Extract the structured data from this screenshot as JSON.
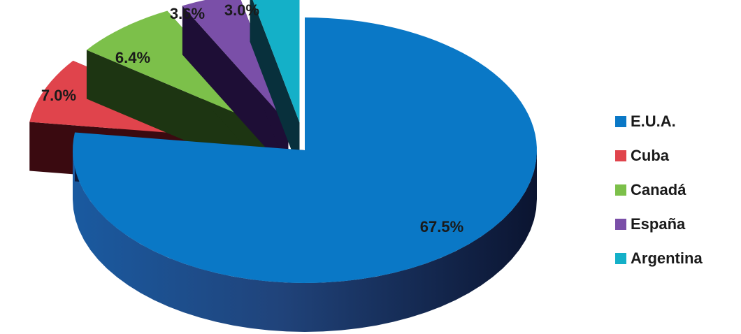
{
  "chart_data": {
    "type": "pie",
    "title": "",
    "categories": [
      "E.U.A.",
      "Cuba",
      "Canadá",
      "España",
      "Argentina"
    ],
    "values": [
      67.5,
      7.0,
      6.4,
      3.6,
      3.0
    ],
    "value_labels": [
      "67.5%",
      "7.0%",
      "6.4%",
      "3.6%",
      "3.0%"
    ],
    "colors": [
      "#0a78c6",
      "#e0444c",
      "#7cc04a",
      "#7a4fa8",
      "#14b0c8"
    ],
    "side_colors": [
      "#0e1a3c",
      "#3a0a10",
      "#1d3512",
      "#1e0e36",
      "#08303c"
    ],
    "exploded": [
      false,
      true,
      true,
      true,
      true
    ],
    "style": "3d",
    "legend_position": "right"
  },
  "legend": {
    "items": [
      {
        "label": "E.U.A.",
        "color": "#0a78c6"
      },
      {
        "label": "Cuba",
        "color": "#e0444c"
      },
      {
        "label": "Canadá",
        "color": "#7cc04a"
      },
      {
        "label": "España",
        "color": "#7a4fa8"
      },
      {
        "label": "Argentina",
        "color": "#14b0c8"
      }
    ]
  }
}
